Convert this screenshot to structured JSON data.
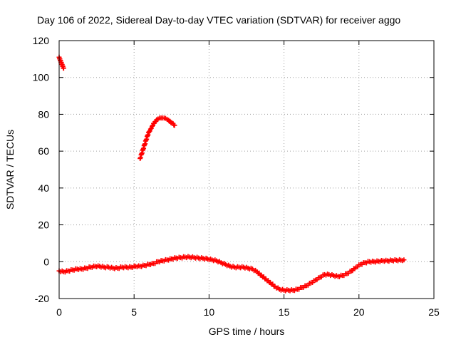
{
  "chart_data": {
    "type": "scatter",
    "title": "Day 106 of 2022, Sidereal Day-to-day VTEC variation (SDTVAR) for receiver aggo",
    "xlabel": "GPS time / hours",
    "ylabel": "SDTVAR / TECUs",
    "xlim": [
      0,
      25
    ],
    "ylim": [
      -20,
      120
    ],
    "xticks": [
      0,
      5,
      10,
      15,
      20,
      25
    ],
    "yticks": [
      -20,
      0,
      20,
      40,
      60,
      80,
      100,
      120
    ],
    "grid": true,
    "marker": "plus",
    "series": [
      {
        "name": "SDTVAR segment 1",
        "color": "#ff0000",
        "x": [
          0.0,
          0.05,
          0.1,
          0.15,
          0.2,
          0.25,
          0.3
        ],
        "y": [
          111,
          110,
          109,
          108,
          107,
          106,
          105
        ]
      },
      {
        "name": "SDTVAR segment 2",
        "color": "#ff0000",
        "x": [
          5.4,
          5.5,
          5.6,
          5.7,
          5.8,
          5.9,
          6.0,
          6.1,
          6.2,
          6.3,
          6.4,
          6.5,
          6.6,
          6.7,
          6.8,
          6.9,
          7.0,
          7.1,
          7.2,
          7.3,
          7.4,
          7.5,
          7.6,
          7.7
        ],
        "y": [
          56,
          58.5,
          61,
          63.5,
          66,
          68.5,
          70.5,
          72,
          73.5,
          75,
          76,
          77,
          77.5,
          78,
          78,
          78,
          78,
          77.8,
          77.3,
          76.8,
          76.2,
          75.5,
          75,
          74
        ]
      },
      {
        "name": "SDTVAR segment 3",
        "color": "#ff0000",
        "x": [
          0.0,
          0.3,
          0.6,
          0.9,
          1.2,
          1.5,
          1.8,
          2.1,
          2.4,
          2.7,
          3.0,
          3.3,
          3.6,
          3.9,
          4.2,
          4.5,
          4.8,
          5.1,
          5.4,
          5.7,
          6.0,
          6.3,
          6.6,
          6.9,
          7.2,
          7.5,
          7.8,
          8.1,
          8.4,
          8.7,
          9.0,
          9.3,
          9.6,
          9.9,
          10.2,
          10.5,
          10.8,
          11.1,
          11.4,
          11.7,
          12.0,
          12.3,
          12.6,
          12.9,
          13.2,
          13.5,
          13.8,
          14.1,
          14.4,
          14.7,
          15.0,
          15.3,
          15.6,
          15.9,
          16.2,
          16.5,
          16.8,
          17.1,
          17.4,
          17.7,
          18.0,
          18.3,
          18.6,
          18.9,
          19.2,
          19.5,
          19.8,
          20.1,
          20.4,
          20.7,
          21.0,
          21.3,
          21.6,
          21.9,
          22.2,
          22.5,
          22.8,
          23.0
        ],
        "y": [
          -5,
          -5.5,
          -5,
          -4.5,
          -4,
          -4,
          -3.5,
          -3,
          -2.5,
          -2.5,
          -3,
          -3,
          -3.5,
          -3.5,
          -3,
          -3,
          -3,
          -2.5,
          -2.5,
          -2,
          -1.5,
          -1,
          0,
          0.5,
          1,
          1.5,
          2,
          2.2,
          2.5,
          2.5,
          2.3,
          2,
          1.8,
          1.5,
          1,
          0.5,
          -0.5,
          -1.5,
          -2.5,
          -3,
          -3,
          -3,
          -3.5,
          -4,
          -5.5,
          -7.5,
          -9.5,
          -11.5,
          -13.5,
          -15,
          -15.5,
          -15.5,
          -15.5,
          -15,
          -14,
          -13,
          -11.5,
          -10,
          -8.5,
          -7,
          -7,
          -7.5,
          -8,
          -7.5,
          -6.5,
          -5,
          -3,
          -1.5,
          -0.5,
          0,
          0,
          0.2,
          0.5,
          0.5,
          0.7,
          0.8,
          0.8,
          1
        ]
      }
    ]
  }
}
